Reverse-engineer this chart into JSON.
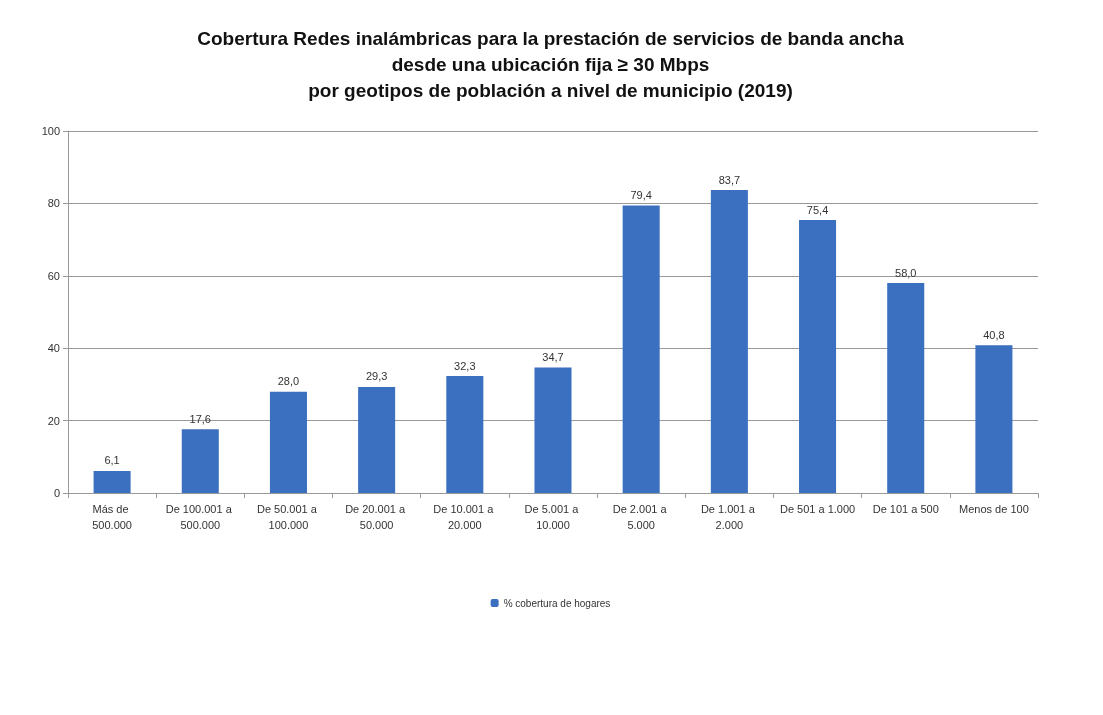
{
  "chart_data": {
    "type": "bar",
    "title": "Cobertura Redes inalámbricas para la prestación de servicios de banda ancha\ndesde una ubicación fija ≥ 30 Mbps\npor geotipos de población a nivel de municipio (2019)",
    "categories": [
      "Más de 500.000",
      "De 100.001 a 500.000",
      "De 50.001 a 100.000",
      "De 20.001 a 50.000",
      "De 10.001 a 20.000",
      "De 5.001 a 10.000",
      "De 2.001 a 5.000",
      "De 1.001 a 2.000",
      "De 501 a 1.000",
      "De 101 a 500",
      "Menos de 100"
    ],
    "series": [
      {
        "name": "% cobertura de hogares",
        "color": "#3b6fbf",
        "values": [
          6.1,
          17.6,
          28.0,
          29.3,
          32.3,
          34.7,
          79.4,
          83.7,
          75.4,
          58.0,
          40.8
        ],
        "value_labels": [
          "6,1",
          "17,6",
          "28,0",
          "29,3",
          "32,3",
          "34,7",
          "79,4",
          "83,7",
          "75,4",
          "58,0",
          "40,8"
        ]
      }
    ],
    "ylim": [
      0,
      100
    ],
    "yticks": [
      0,
      20,
      40,
      60,
      80,
      100
    ],
    "grid": "y",
    "legend": "bottom"
  }
}
